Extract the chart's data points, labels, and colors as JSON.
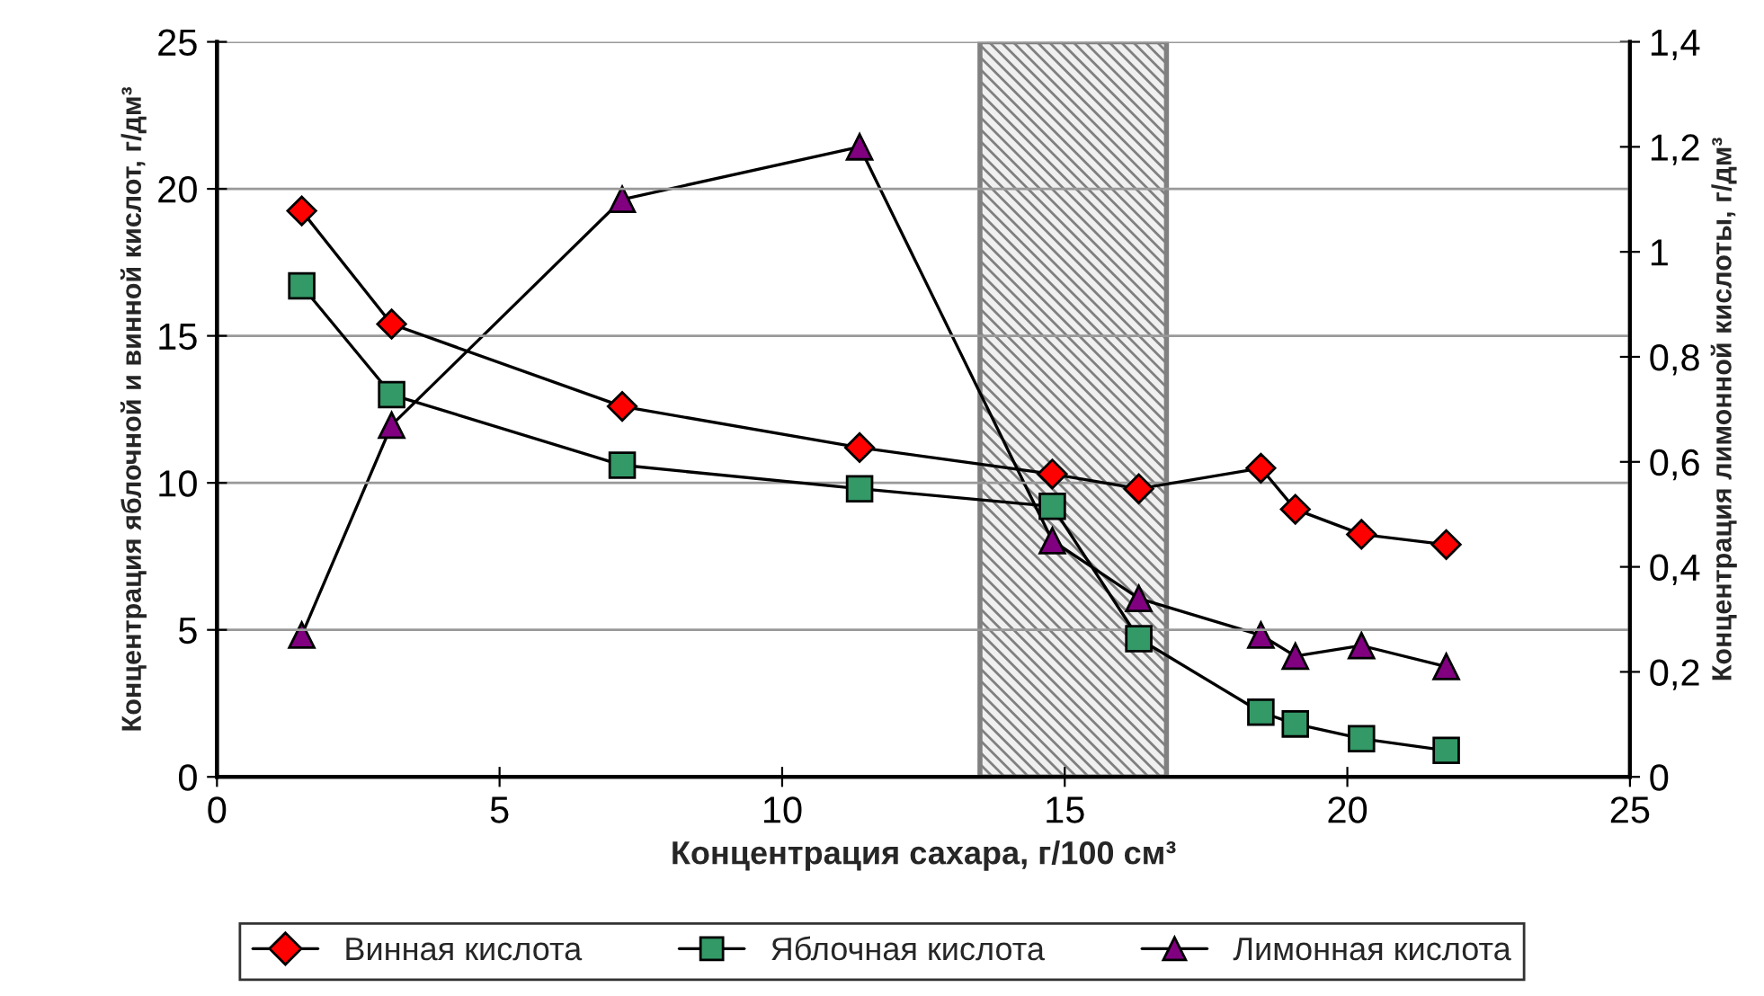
{
  "chart_data": {
    "type": "line",
    "xlabel": "Концентрация сахара, г/100 см³",
    "ylabel": "Концентрация яблочной и винной кислот, г/дм³",
    "y2label": "Концентрация лимонной кислоты, г/дм³",
    "x": [
      1.5,
      3.09,
      7.17,
      11.37,
      14.78,
      16.31,
      18.47,
      19.08,
      20.25,
      21.75
    ],
    "series": [
      {
        "name": "Винная кислота",
        "color": "#ff0000",
        "marker": "diamond",
        "values": [
          19.25,
          15.4,
          12.6,
          11.2,
          10.3,
          9.8,
          10.5,
          9.1,
          8.25,
          7.9
        ]
      },
      {
        "name": "Яблочная кислота",
        "color": "#339966",
        "marker": "square",
        "values": [
          16.7,
          13.0,
          10.6,
          9.8,
          9.2,
          4.7,
          2.2,
          1.8,
          1.3,
          0.9
        ]
      },
      {
        "name": "Лимонная кислота",
        "color": "#800080",
        "marker": "triangle",
        "axis": "y2",
        "values": [
          0.27,
          0.67,
          1.1,
          1.2,
          0.45,
          0.34,
          0.27,
          0.23,
          0.25,
          0.21
        ]
      }
    ],
    "xlim": [
      0,
      25
    ],
    "xticks": [
      0,
      5,
      10,
      15,
      20,
      25
    ],
    "ylim": [
      0,
      25
    ],
    "yticks": [
      0,
      5,
      10,
      15,
      20,
      25
    ],
    "y2lim": [
      0,
      1.4
    ],
    "y2ticks": [
      0,
      {
        "value": 0.2,
        "label": "0,2"
      },
      {
        "value": 0.4,
        "label": "0,4"
      },
      {
        "value": 0.6,
        "label": "0,6"
      },
      {
        "value": 0.8,
        "label": "0,8"
      },
      1,
      {
        "value": 1.2,
        "label": "1,2"
      },
      {
        "value": 1.4,
        "label": "1,4"
      }
    ],
    "bands": [
      {
        "axis": "x",
        "from": 13.5,
        "to": 16.8,
        "color": "#808080"
      }
    ],
    "grid": "y",
    "legend": "bottom"
  }
}
